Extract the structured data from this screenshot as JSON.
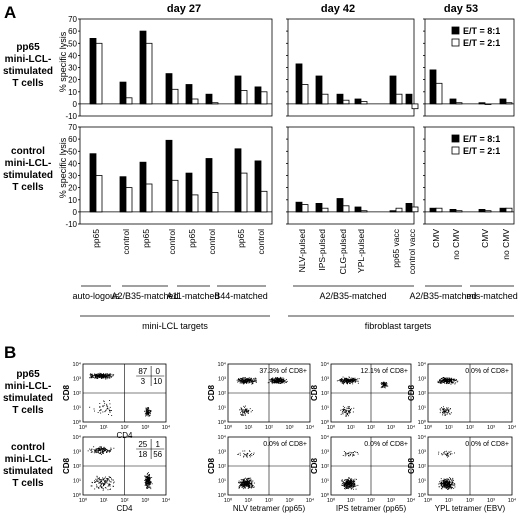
{
  "panel_a_letter": "A",
  "panel_b_letter": "B",
  "day_titles": [
    "day 27",
    "day 42",
    "day 53"
  ],
  "row_labels": [
    [
      "pp65",
      "mini-LCL-",
      "stimulated",
      "T cells"
    ],
    [
      "control",
      "mini-LCL-",
      "stimulated",
      "T cells"
    ]
  ],
  "y_axis_label": "% specific lysis",
  "y_ticks": [
    "70",
    "60",
    "50",
    "40",
    "30",
    "20",
    "10",
    "0",
    "-10"
  ],
  "legend": {
    "et81": "E/T = 8:1",
    "et21": "E/T = 2:1"
  },
  "group_labels": [
    "auto-logous",
    "A2/B35-matched",
    "A11-matched",
    "B44-matched",
    "A2/B35-matched",
    "A2/B35-matched",
    "mis-matched"
  ],
  "target_labels": [
    "mini-LCL targets",
    "fibroblast targets"
  ],
  "colors": {
    "et81": "#000000",
    "et21": "#ffffff"
  },
  "chart_data": [
    {
      "type": "bar",
      "title": "day 27",
      "row": "pp65 mini-LCL-stimulated T cells",
      "categories": [
        "pp65",
        "control",
        "pp65",
        "control",
        "pp65",
        "control",
        "pp65",
        "control"
      ],
      "ylim": [
        -10,
        70
      ],
      "series": [
        {
          "name": "E/T = 8:1",
          "values": [
            54,
            18,
            60,
            25,
            16,
            8,
            23,
            14
          ]
        },
        {
          "name": "E/T = 2:1",
          "values": [
            50,
            5,
            50,
            12,
            4,
            1,
            11,
            10
          ]
        }
      ]
    },
    {
      "type": "bar",
      "title": "day 42",
      "row": "pp65 mini-LCL-stimulated T cells",
      "categories": [
        "NLV-pulsed",
        "IPS-pulsed",
        "CLG-pulsed",
        "YPL-pulsed",
        "pp65 vacc",
        "control vacc"
      ],
      "ylim": [
        -10,
        70
      ],
      "series": [
        {
          "name": "E/T = 8:1",
          "values": [
            33,
            23,
            8,
            4,
            23,
            8
          ]
        },
        {
          "name": "E/T = 2:1",
          "values": [
            16,
            8,
            3,
            2,
            8,
            -4
          ]
        }
      ]
    },
    {
      "type": "bar",
      "title": "day 53",
      "row": "pp65 mini-LCL-stimulated T cells",
      "categories": [
        "CMV",
        "no CMV",
        "CMV",
        "no CMV"
      ],
      "ylim": [
        -10,
        70
      ],
      "series": [
        {
          "name": "E/T = 8:1",
          "values": [
            28,
            4,
            1,
            4
          ]
        },
        {
          "name": "E/T = 2:1",
          "values": [
            17,
            1,
            0,
            1
          ]
        }
      ]
    },
    {
      "type": "bar",
      "title": "day 27",
      "row": "control mini-LCL-stimulated T cells",
      "categories": [
        "pp65",
        "control",
        "pp65",
        "control",
        "pp65",
        "control",
        "pp65",
        "control"
      ],
      "ylim": [
        -10,
        70
      ],
      "series": [
        {
          "name": "E/T = 8:1",
          "values": [
            48,
            29,
            41,
            59,
            32,
            44,
            52,
            42
          ]
        },
        {
          "name": "E/T = 2:1",
          "values": [
            30,
            20,
            23,
            26,
            14,
            16,
            32,
            17
          ]
        }
      ]
    },
    {
      "type": "bar",
      "title": "day 42",
      "row": "control mini-LCL-stimulated T cells",
      "categories": [
        "NLV-pulsed",
        "IPS-pulsed",
        "CLG-pulsed",
        "YPL-pulsed",
        "pp65 vacc",
        "control vacc"
      ],
      "ylim": [
        -10,
        70
      ],
      "series": [
        {
          "name": "E/T = 8:1",
          "values": [
            8,
            7,
            11,
            4,
            1,
            7
          ]
        },
        {
          "name": "E/T = 2:1",
          "values": [
            6,
            3,
            5,
            1,
            3,
            4
          ]
        }
      ]
    },
    {
      "type": "bar",
      "title": "day 53",
      "row": "control mini-LCL-stimulated T cells",
      "categories": [
        "CMV",
        "no CMV",
        "CMV",
        "no CMV"
      ],
      "ylim": [
        -10,
        70
      ],
      "series": [
        {
          "name": "E/T = 8:1",
          "values": [
            3,
            2,
            2,
            3
          ]
        },
        {
          "name": "E/T = 2:1",
          "values": [
            3,
            1,
            1,
            3
          ]
        }
      ]
    }
  ],
  "flow": {
    "y_label": "CD8",
    "cd4_label": "CD4",
    "tick_labels": [
      "10⁰",
      "10¹",
      "10²",
      "10³",
      "10⁴"
    ],
    "quadrants": [
      {
        "ul": "87",
        "ur": "0",
        "ll": "3",
        "lr": "10"
      },
      {
        "ul": "25",
        "ur": "1",
        "ll": "18",
        "lr": "56"
      }
    ],
    "tetramer_x_labels": [
      "NLV tetramer (pp65)",
      "IPS tetramer (pp65)",
      "YPL tetramer (EBV)"
    ],
    "percent_labels": [
      [
        "37.3% of CD8+",
        "12.1% of CD8+",
        "0.0% of CD8+"
      ],
      [
        "0.0% of CD8+",
        "0.0% of CD8+",
        "0.0% of CD8+"
      ]
    ]
  }
}
